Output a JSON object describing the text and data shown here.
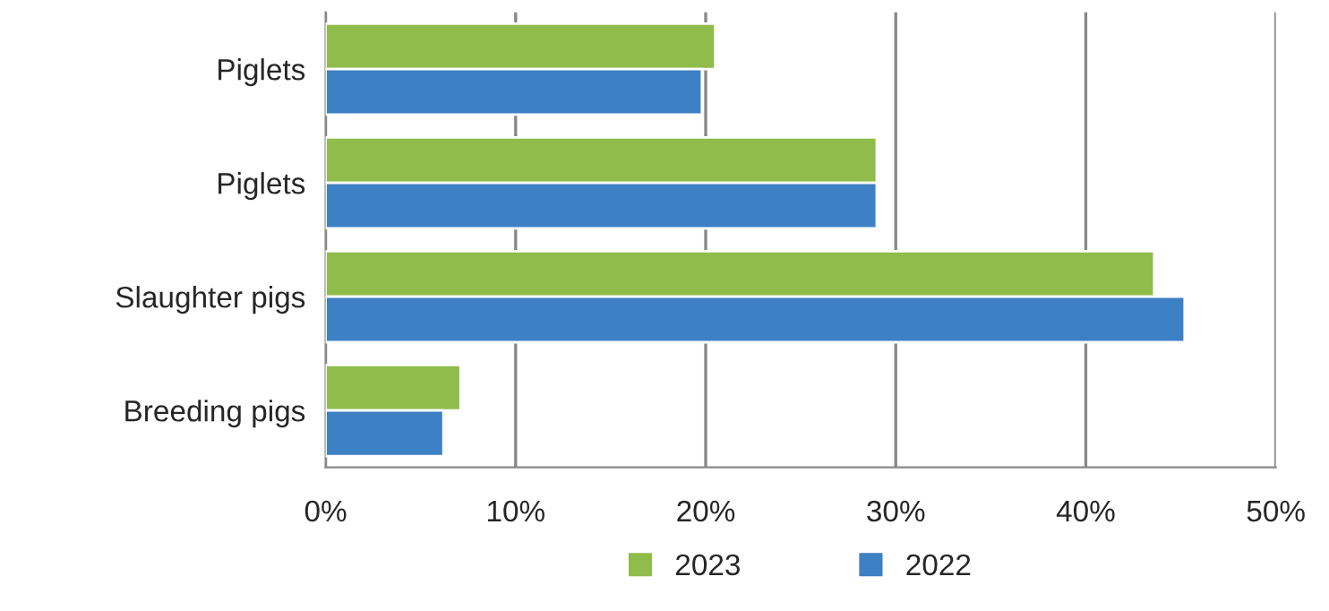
{
  "chart_data": {
    "type": "bar",
    "orientation": "horizontal",
    "categories": [
      "Piglets",
      "Piglets",
      "Slaughter pigs",
      "Breeding pigs"
    ],
    "series": [
      {
        "name": "2023",
        "color": "#8fbc4b",
        "values": [
          20.5,
          29.0,
          43.6,
          7.1
        ]
      },
      {
        "name": "2022",
        "color": "#3d80c3",
        "values": [
          19.8,
          29.0,
          45.2,
          6.2
        ]
      }
    ],
    "xlim": [
      0,
      50
    ],
    "xticks": [
      {
        "value": 0,
        "label": "0%"
      },
      {
        "value": 10,
        "label": "10%"
      },
      {
        "value": 20,
        "label": "20%"
      },
      {
        "value": 30,
        "label": "30%"
      },
      {
        "value": 40,
        "label": "40%"
      },
      {
        "value": 50,
        "label": "50%"
      }
    ],
    "grid": "x",
    "legend": "bottom"
  }
}
